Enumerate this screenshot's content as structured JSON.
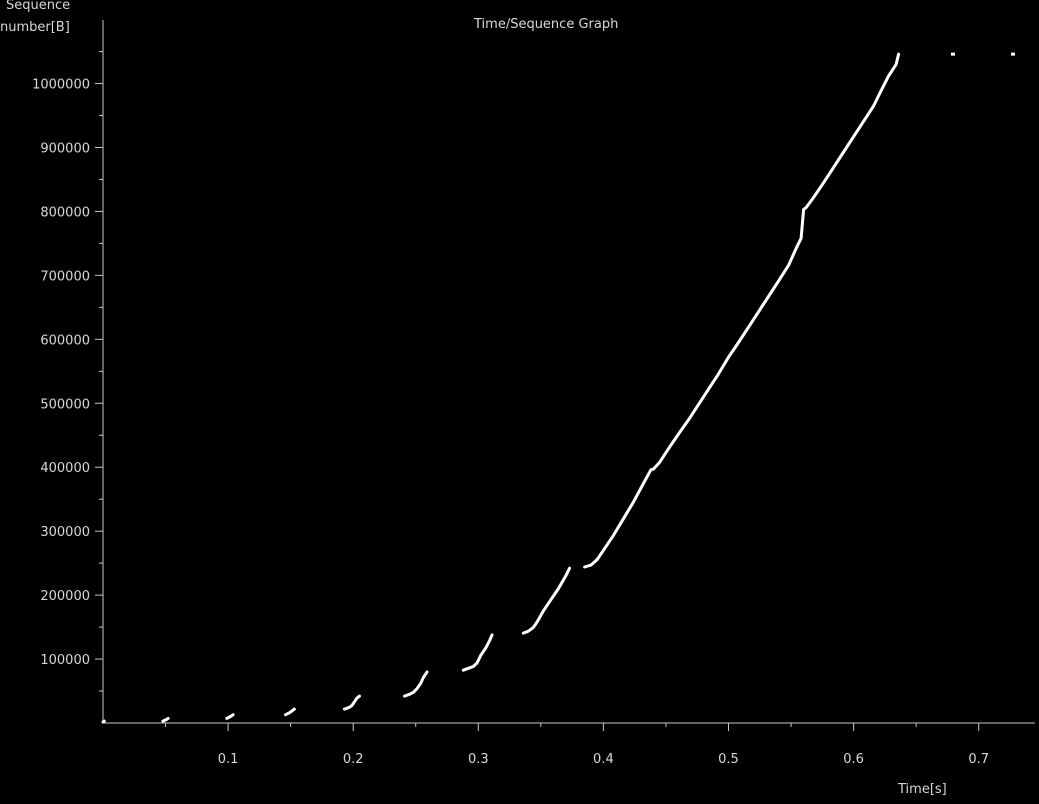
{
  "chart_data": {
    "type": "scatter",
    "title": "Time/Sequence Graph",
    "ylabel_line1": "Sequence",
    "ylabel_line2": "number[B]",
    "xlabel": "Time[s]",
    "xlim": [
      0,
      0.745
    ],
    "ylim": [
      0,
      1090000
    ],
    "xticks": [
      0.1,
      0.2,
      0.3,
      0.4,
      0.5,
      0.6,
      0.7
    ],
    "xtick_labels": [
      "0.1",
      "0.2",
      "0.3",
      "0.4",
      "0.5",
      "0.6",
      "0.7"
    ],
    "yticks": [
      100000,
      200000,
      300000,
      400000,
      500000,
      600000,
      700000,
      800000,
      900000,
      1000000
    ],
    "ytick_labels": [
      "100000",
      "200000",
      "300000",
      "400000",
      "500000",
      "600000",
      "700000",
      "800000",
      "900000",
      "1000000"
    ],
    "grid": false,
    "series": [
      {
        "color": "#ffffff",
        "segments": [
          [
            [
              0.0,
              1500
            ],
            [
              0.001,
              2900
            ]
          ],
          [
            [
              0.048,
              2900
            ],
            [
              0.051,
              5800
            ],
            [
              0.052,
              7200
            ]
          ],
          [
            [
              0.099,
              7200
            ],
            [
              0.102,
              10100
            ],
            [
              0.104,
              13000
            ]
          ],
          [
            [
              0.146,
              13000
            ],
            [
              0.149,
              15900
            ],
            [
              0.151,
              18800
            ],
            [
              0.153,
              21700
            ]
          ],
          [
            [
              0.193,
              21700
            ],
            [
              0.197,
              24600
            ],
            [
              0.199,
              27500
            ],
            [
              0.201,
              33300
            ],
            [
              0.203,
              39100
            ],
            [
              0.205,
              42000
            ]
          ],
          [
            [
              0.241,
              42000
            ],
            [
              0.245,
              44900
            ],
            [
              0.248,
              47800
            ],
            [
              0.251,
              53600
            ],
            [
              0.254,
              62300
            ],
            [
              0.256,
              71000
            ],
            [
              0.258,
              76800
            ],
            [
              0.259,
              79700
            ]
          ],
          [
            [
              0.288,
              82600
            ],
            [
              0.292,
              85500
            ],
            [
              0.296,
              88400
            ],
            [
              0.299,
              94200
            ],
            [
              0.302,
              105800
            ],
            [
              0.306,
              117400
            ],
            [
              0.309,
              129000
            ],
            [
              0.311,
              137700
            ]
          ],
          [
            [
              0.336,
              140600
            ],
            [
              0.34,
              143500
            ],
            [
              0.344,
              149300
            ],
            [
              0.347,
              158000
            ],
            [
              0.352,
              175400
            ],
            [
              0.358,
              192800
            ],
            [
              0.364,
              210200
            ],
            [
              0.37,
              230500
            ],
            [
              0.373,
              242100
            ]
          ],
          [
            [
              0.385,
              244000
            ],
            [
              0.39,
              246900
            ],
            [
              0.395,
              255600
            ],
            [
              0.4,
              270100
            ],
            [
              0.408,
              293300
            ],
            [
              0.416,
              319400
            ],
            [
              0.424,
              345500
            ],
            [
              0.432,
              374500
            ],
            [
              0.438,
              396000
            ],
            [
              0.44,
              397000
            ],
            [
              0.445,
              407800
            ],
            [
              0.452,
              429000
            ],
            [
              0.46,
              452000
            ],
            [
              0.468,
              474000
            ],
            [
              0.476,
              498000
            ],
            [
              0.484,
              522000
            ],
            [
              0.492,
              546000
            ],
            [
              0.5,
              572000
            ],
            [
              0.508,
              595000
            ],
            [
              0.516,
              619000
            ],
            [
              0.524,
              643000
            ],
            [
              0.532,
              667000
            ],
            [
              0.54,
              691000
            ],
            [
              0.548,
              716000
            ],
            [
              0.554,
              742000
            ],
            [
              0.558,
              758000
            ],
            [
              0.56,
              803000
            ],
            [
              0.562,
              806000
            ],
            [
              0.568,
              822000
            ],
            [
              0.576,
              845000
            ],
            [
              0.584,
              869000
            ],
            [
              0.592,
              893000
            ],
            [
              0.6,
              917000
            ],
            [
              0.608,
              941000
            ],
            [
              0.616,
              965000
            ],
            [
              0.622,
              989000
            ],
            [
              0.628,
              1012000
            ],
            [
              0.634,
              1030000
            ],
            [
              0.636,
              1046000
            ]
          ],
          [
            [
              0.679,
              1046000
            ]
          ],
          [
            [
              0.727,
              1046000
            ]
          ]
        ]
      }
    ]
  }
}
